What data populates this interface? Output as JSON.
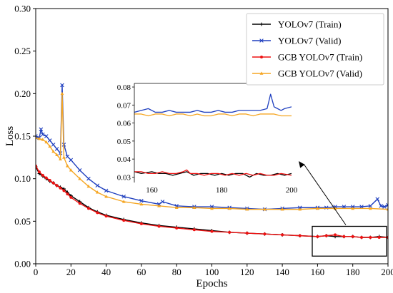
{
  "chart_data": {
    "type": "line",
    "title": "",
    "xlabel": "Epochs",
    "ylabel": "Loss",
    "xlim": [
      0,
      200
    ],
    "ylim": [
      0,
      0.3
    ],
    "xticks": [
      0,
      20,
      40,
      60,
      80,
      100,
      120,
      140,
      160,
      180,
      200
    ],
    "yticks": [
      0.0,
      0.05,
      0.1,
      0.15,
      0.2,
      0.25,
      0.3
    ],
    "ytick_labels": [
      "0.00",
      "0.05",
      "0.10",
      "0.15",
      "0.20",
      "0.25",
      "0.30"
    ],
    "grid": false,
    "legend_position": "top-right",
    "series": [
      {
        "name": "YOLOv7 (Train)",
        "color": "#000000",
        "marker": "plus",
        "x": [
          0,
          2,
          4,
          6,
          8,
          10,
          12,
          14,
          16,
          18,
          20,
          25,
          30,
          35,
          40,
          50,
          60,
          70,
          80,
          90,
          100,
          110,
          120,
          130,
          140,
          150,
          160,
          165,
          170,
          175,
          180,
          185,
          190,
          195,
          200
        ],
        "y": [
          0.114,
          0.106,
          0.103,
          0.1,
          0.097,
          0.095,
          0.092,
          0.09,
          0.088,
          0.084,
          0.08,
          0.073,
          0.066,
          0.061,
          0.057,
          0.052,
          0.048,
          0.045,
          0.043,
          0.041,
          0.039,
          0.037,
          0.036,
          0.035,
          0.034,
          0.033,
          0.032,
          0.033,
          0.032,
          0.032,
          0.032,
          0.031,
          0.031,
          0.032,
          0.031
        ]
      },
      {
        "name": "YOLOv7 (Valid)",
        "color": "#1f3fbf",
        "marker": "x",
        "x": [
          0,
          2,
          3,
          4,
          6,
          8,
          10,
          12,
          14,
          15,
          16,
          18,
          20,
          25,
          30,
          35,
          40,
          50,
          60,
          70,
          72,
          80,
          90,
          100,
          110,
          120,
          130,
          140,
          150,
          160,
          165,
          170,
          175,
          180,
          185,
          190,
          194,
          196,
          198,
          200
        ],
        "y": [
          0.15,
          0.148,
          0.158,
          0.152,
          0.15,
          0.145,
          0.14,
          0.135,
          0.13,
          0.21,
          0.14,
          0.126,
          0.122,
          0.11,
          0.1,
          0.092,
          0.086,
          0.079,
          0.074,
          0.07,
          0.073,
          0.068,
          0.067,
          0.067,
          0.066,
          0.065,
          0.064,
          0.065,
          0.066,
          0.066,
          0.066,
          0.067,
          0.067,
          0.067,
          0.067,
          0.068,
          0.076,
          0.068,
          0.067,
          0.069
        ]
      },
      {
        "name": "GCB YOLOv7 (Train)",
        "color": "#ee1111",
        "marker": "circle",
        "x": [
          0,
          2,
          4,
          6,
          8,
          10,
          12,
          14,
          16,
          18,
          20,
          25,
          30,
          35,
          40,
          50,
          60,
          70,
          80,
          90,
          100,
          110,
          120,
          130,
          140,
          150,
          160,
          165,
          170,
          175,
          180,
          185,
          190,
          195,
          200
        ],
        "y": [
          0.115,
          0.108,
          0.104,
          0.101,
          0.098,
          0.095,
          0.092,
          0.089,
          0.086,
          0.082,
          0.078,
          0.071,
          0.065,
          0.06,
          0.056,
          0.051,
          0.047,
          0.044,
          0.042,
          0.04,
          0.038,
          0.037,
          0.036,
          0.035,
          0.034,
          0.033,
          0.032,
          0.033,
          0.034,
          0.032,
          0.032,
          0.031,
          0.031,
          0.031,
          0.031
        ]
      },
      {
        "name": "GCB YOLOv7 (Valid)",
        "color": "#f5a623",
        "marker": "triangle",
        "x": [
          0,
          2,
          4,
          6,
          8,
          10,
          12,
          14,
          15,
          16,
          18,
          20,
          25,
          30,
          35,
          40,
          50,
          60,
          70,
          80,
          90,
          100,
          110,
          120,
          130,
          140,
          150,
          160,
          170,
          180,
          190,
          200
        ],
        "y": [
          0.148,
          0.147,
          0.146,
          0.143,
          0.138,
          0.132,
          0.128,
          0.123,
          0.2,
          0.125,
          0.115,
          0.11,
          0.1,
          0.091,
          0.084,
          0.079,
          0.073,
          0.07,
          0.068,
          0.066,
          0.066,
          0.065,
          0.065,
          0.064,
          0.064,
          0.064,
          0.064,
          0.065,
          0.065,
          0.065,
          0.065,
          0.064
        ]
      }
    ],
    "inset": {
      "xlim": [
        155,
        200
      ],
      "ylim": [
        0.027,
        0.082
      ],
      "xticks": [
        160,
        180,
        200
      ],
      "yticks": [
        0.03,
        0.04,
        0.05,
        0.06,
        0.07,
        0.08
      ],
      "ytick_labels": [
        "0.03",
        "0.04",
        "0.05",
        "0.06",
        "0.07",
        "0.08"
      ],
      "series": [
        {
          "name": "YOLOv7 (Train)",
          "color": "#000000",
          "x": [
            155,
            157,
            160,
            162,
            164,
            166,
            168,
            170,
            172,
            174,
            176,
            178,
            180,
            182,
            184,
            186,
            188,
            190,
            192,
            194,
            196,
            198,
            200
          ],
          "y": [
            0.033,
            0.032,
            0.033,
            0.032,
            0.032,
            0.031,
            0.032,
            0.033,
            0.031,
            0.032,
            0.032,
            0.031,
            0.032,
            0.031,
            0.032,
            0.032,
            0.03,
            0.032,
            0.031,
            0.031,
            0.032,
            0.031,
            0.032
          ]
        },
        {
          "name": "YOLOv7 (Valid)",
          "color": "#1f3fbf",
          "x": [
            155,
            157,
            159,
            161,
            163,
            165,
            167,
            169,
            171,
            173,
            175,
            177,
            179,
            181,
            183,
            185,
            187,
            189,
            191,
            193,
            194,
            195,
            196,
            197,
            198,
            200
          ],
          "y": [
            0.066,
            0.067,
            0.068,
            0.066,
            0.066,
            0.067,
            0.066,
            0.066,
            0.066,
            0.067,
            0.066,
            0.066,
            0.067,
            0.066,
            0.066,
            0.067,
            0.067,
            0.067,
            0.067,
            0.068,
            0.076,
            0.069,
            0.068,
            0.067,
            0.068,
            0.069
          ]
        },
        {
          "name": "GCB YOLOv7 (Train)",
          "color": "#ee1111",
          "x": [
            155,
            157,
            159,
            161,
            163,
            165,
            167,
            169,
            170,
            171,
            173,
            175,
            177,
            179,
            181,
            183,
            185,
            187,
            189,
            191,
            193,
            195,
            197,
            200
          ],
          "y": [
            0.033,
            0.033,
            0.032,
            0.032,
            0.033,
            0.032,
            0.032,
            0.033,
            0.034,
            0.032,
            0.032,
            0.031,
            0.032,
            0.032,
            0.031,
            0.032,
            0.031,
            0.032,
            0.031,
            0.032,
            0.031,
            0.031,
            0.032,
            0.031
          ]
        },
        {
          "name": "GCB YOLOv7 (Valid)",
          "color": "#f5a623",
          "x": [
            155,
            157,
            159,
            161,
            163,
            165,
            167,
            169,
            171,
            173,
            175,
            177,
            179,
            181,
            183,
            185,
            187,
            189,
            191,
            193,
            195,
            197,
            200
          ],
          "y": [
            0.065,
            0.065,
            0.064,
            0.065,
            0.065,
            0.064,
            0.065,
            0.065,
            0.064,
            0.065,
            0.064,
            0.064,
            0.065,
            0.065,
            0.064,
            0.065,
            0.065,
            0.064,
            0.065,
            0.065,
            0.065,
            0.064,
            0.064
          ]
        }
      ]
    },
    "zoom_box": {
      "xlim": [
        157,
        202
      ],
      "ylim": [
        0.009,
        0.044
      ]
    }
  }
}
